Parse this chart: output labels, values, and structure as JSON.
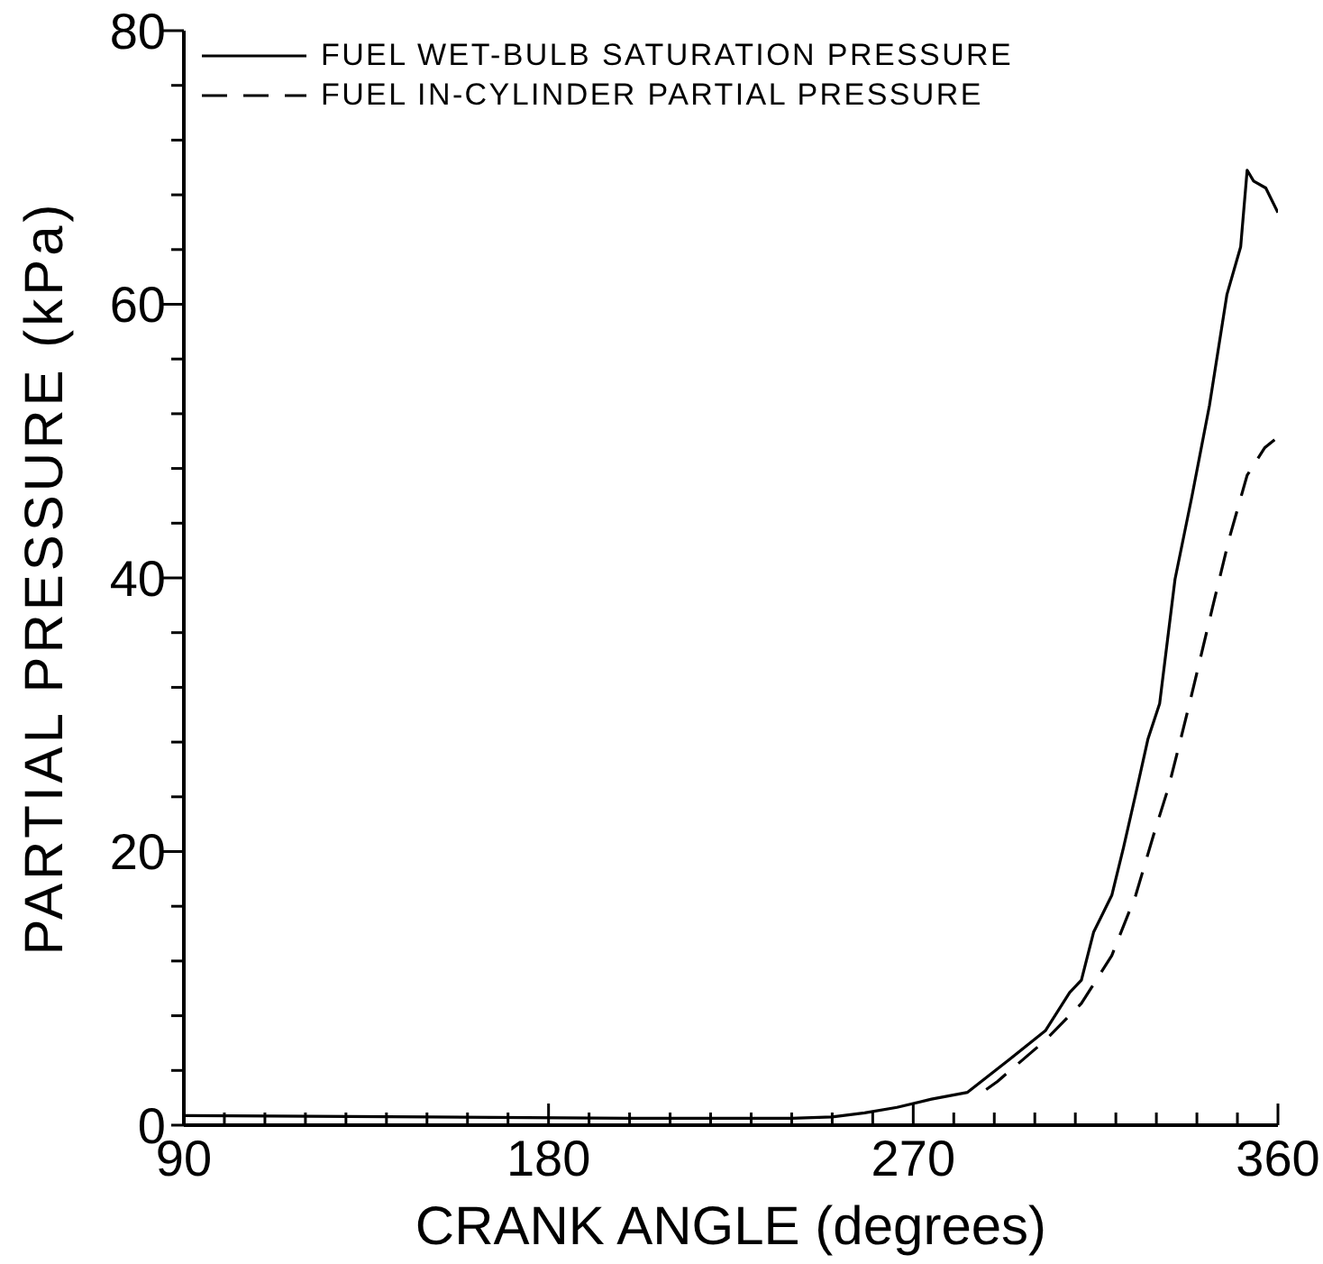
{
  "chart_data": {
    "type": "line",
    "xlabel": "CRANK ANGLE (degrees)",
    "ylabel": "PARTIAL PRESSURE (kPa)",
    "xlim": [
      90,
      360
    ],
    "ylim": [
      0,
      80
    ],
    "xticks": [
      90,
      {
        "value": 100,
        "label": null
      },
      {
        "value": 110,
        "label": null
      },
      {
        "value": 120,
        "label": null
      },
      {
        "value": 130,
        "label": null
      },
      {
        "value": 140,
        "label": null
      },
      {
        "value": 150,
        "label": null
      },
      {
        "value": 160,
        "label": null
      },
      {
        "value": 170,
        "label": null
      },
      180,
      {
        "value": 190,
        "label": null
      },
      {
        "value": 200,
        "label": null
      },
      {
        "value": 210,
        "label": null
      },
      {
        "value": 220,
        "label": null
      },
      {
        "value": 230,
        "label": null
      },
      {
        "value": 240,
        "label": null
      },
      {
        "value": 250,
        "label": null
      },
      {
        "value": 260,
        "label": null
      },
      270,
      {
        "value": 280,
        "label": null
      },
      {
        "value": 290,
        "label": null
      },
      {
        "value": 300,
        "label": null
      },
      {
        "value": 310,
        "label": null
      },
      {
        "value": 320,
        "label": null
      },
      {
        "value": 330,
        "label": null
      },
      {
        "value": 340,
        "label": null
      },
      {
        "value": 350,
        "label": null
      },
      360
    ],
    "yticks": [
      0,
      {
        "value": 4,
        "label": null
      },
      {
        "value": 8,
        "label": null
      },
      {
        "value": 12,
        "label": null
      },
      {
        "value": 16,
        "label": null
      },
      20,
      {
        "value": 24,
        "label": null
      },
      {
        "value": 28,
        "label": null
      },
      {
        "value": 32,
        "label": null
      },
      {
        "value": 36,
        "label": null
      },
      40,
      {
        "value": 44,
        "label": null
      },
      {
        "value": 48,
        "label": null
      },
      {
        "value": 52,
        "label": null
      },
      {
        "value": 56,
        "label": null
      },
      60,
      {
        "value": 64,
        "label": null
      },
      {
        "value": 68,
        "label": null
      },
      {
        "value": 72,
        "label": null
      },
      {
        "value": 76,
        "label": null
      },
      80
    ],
    "grid": false,
    "legend": "top left",
    "marker": "none",
    "series": [
      {
        "name": "FUEL WET-BULB SATURATION PRESSURE",
        "color": "#000000",
        "line_style": "solid",
        "x": [
          90,
          150,
          200,
          240,
          250,
          258,
          266,
          274.5,
          283.4,
          293.7,
          302.6,
          308.6,
          311.5,
          314.5,
          319,
          321.9,
          324.9,
          327.9,
          330.8,
          334.6,
          338.8,
          343.1,
          347.4,
          350.8,
          352.4,
          354,
          357,
          360
        ],
        "values": [
          0.7,
          0.6,
          0.5,
          0.5,
          0.6,
          0.9,
          1.3,
          1.9,
          2.4,
          4.8,
          6.9,
          9.7,
          10.6,
          14.1,
          16.8,
          20.3,
          24.2,
          28.2,
          30.8,
          39.9,
          46,
          52.6,
          60.7,
          64.2,
          69.8,
          69,
          68.5,
          66.7
        ]
      },
      {
        "name": "FUEL IN-CYLINDER PARTIAL PRESSURE",
        "color": "#000000",
        "line_style": "dashed",
        "x": [
          288,
          290.8,
          302.6,
          311.5,
          319,
          324.9,
          329.3,
          333,
          336,
          338.9,
          343.9,
          348,
          352.4,
          356.7,
          360
        ],
        "values": [
          2.6,
          3.2,
          6.2,
          8.9,
          12.4,
          16.8,
          21.2,
          24.7,
          28.2,
          31.7,
          37.9,
          42.9,
          47.5,
          49.5,
          50.3
        ]
      }
    ]
  }
}
